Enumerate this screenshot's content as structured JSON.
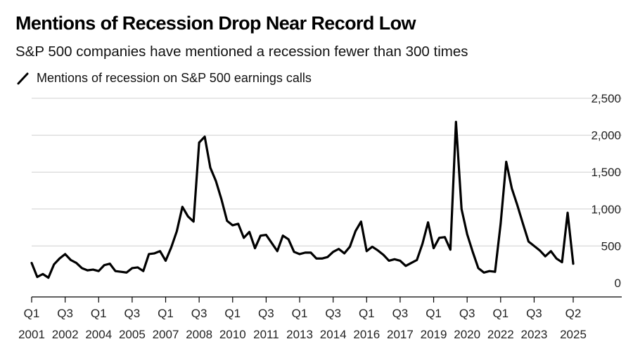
{
  "chart_data": {
    "type": "line",
    "title": "Mentions of Recession Drop Near Record Low",
    "subtitle": "S&P 500 companies have mentioned a recession fewer than 300 times",
    "xlabel": "",
    "ylabel": "",
    "ylim": [
      0,
      2500
    ],
    "yticks": [
      0,
      500,
      1000,
      1500,
      2000,
      2500
    ],
    "ytick_labels": [
      "0",
      "500",
      "1,000",
      "1,500",
      "2,000",
      "2,500"
    ],
    "grid": true,
    "legend_position": "top-left",
    "x_ticks": [
      {
        "index": 0,
        "quarter": "Q1",
        "year": "2001"
      },
      {
        "index": 6,
        "quarter": "Q3",
        "year": "2002"
      },
      {
        "index": 12,
        "quarter": "Q1",
        "year": "2004"
      },
      {
        "index": 18,
        "quarter": "Q3",
        "year": "2005"
      },
      {
        "index": 24,
        "quarter": "Q1",
        "year": "2007"
      },
      {
        "index": 30,
        "quarter": "Q3",
        "year": "2008"
      },
      {
        "index": 36,
        "quarter": "Q1",
        "year": "2010"
      },
      {
        "index": 42,
        "quarter": "Q3",
        "year": "2011"
      },
      {
        "index": 48,
        "quarter": "Q1",
        "year": "2013"
      },
      {
        "index": 54,
        "quarter": "Q3",
        "year": "2014"
      },
      {
        "index": 60,
        "quarter": "Q1",
        "year": "2016"
      },
      {
        "index": 66,
        "quarter": "Q3",
        "year": "2017"
      },
      {
        "index": 72,
        "quarter": "Q1",
        "year": "2019"
      },
      {
        "index": 78,
        "quarter": "Q3",
        "year": "2020"
      },
      {
        "index": 84,
        "quarter": "Q1",
        "year": "2022"
      },
      {
        "index": 90,
        "quarter": "Q3",
        "year": "2023"
      },
      {
        "index": 97,
        "quarter": "Q2",
        "year": "2025"
      }
    ],
    "series": [
      {
        "name": "Mentions of recession on S&P 500 earnings calls",
        "color": "#000000",
        "values": [
          270,
          80,
          120,
          70,
          250,
          330,
          390,
          310,
          270,
          200,
          170,
          180,
          160,
          240,
          260,
          160,
          150,
          140,
          200,
          210,
          160,
          390,
          400,
          430,
          300,
          480,
          700,
          1030,
          900,
          830,
          1900,
          1980,
          1560,
          1380,
          1130,
          840,
          780,
          800,
          610,
          690,
          470,
          640,
          650,
          540,
          430,
          640,
          590,
          420,
          390,
          410,
          410,
          330,
          330,
          350,
          420,
          460,
          400,
          490,
          700,
          830,
          430,
          490,
          440,
          380,
          300,
          320,
          300,
          230,
          270,
          310,
          530,
          820,
          470,
          610,
          620,
          450,
          2180,
          1000,
          660,
          420,
          200,
          140,
          160,
          150,
          800,
          1640,
          1280,
          1050,
          800,
          560,
          500,
          440,
          360,
          430,
          330,
          280,
          950,
          260
        ]
      }
    ]
  }
}
